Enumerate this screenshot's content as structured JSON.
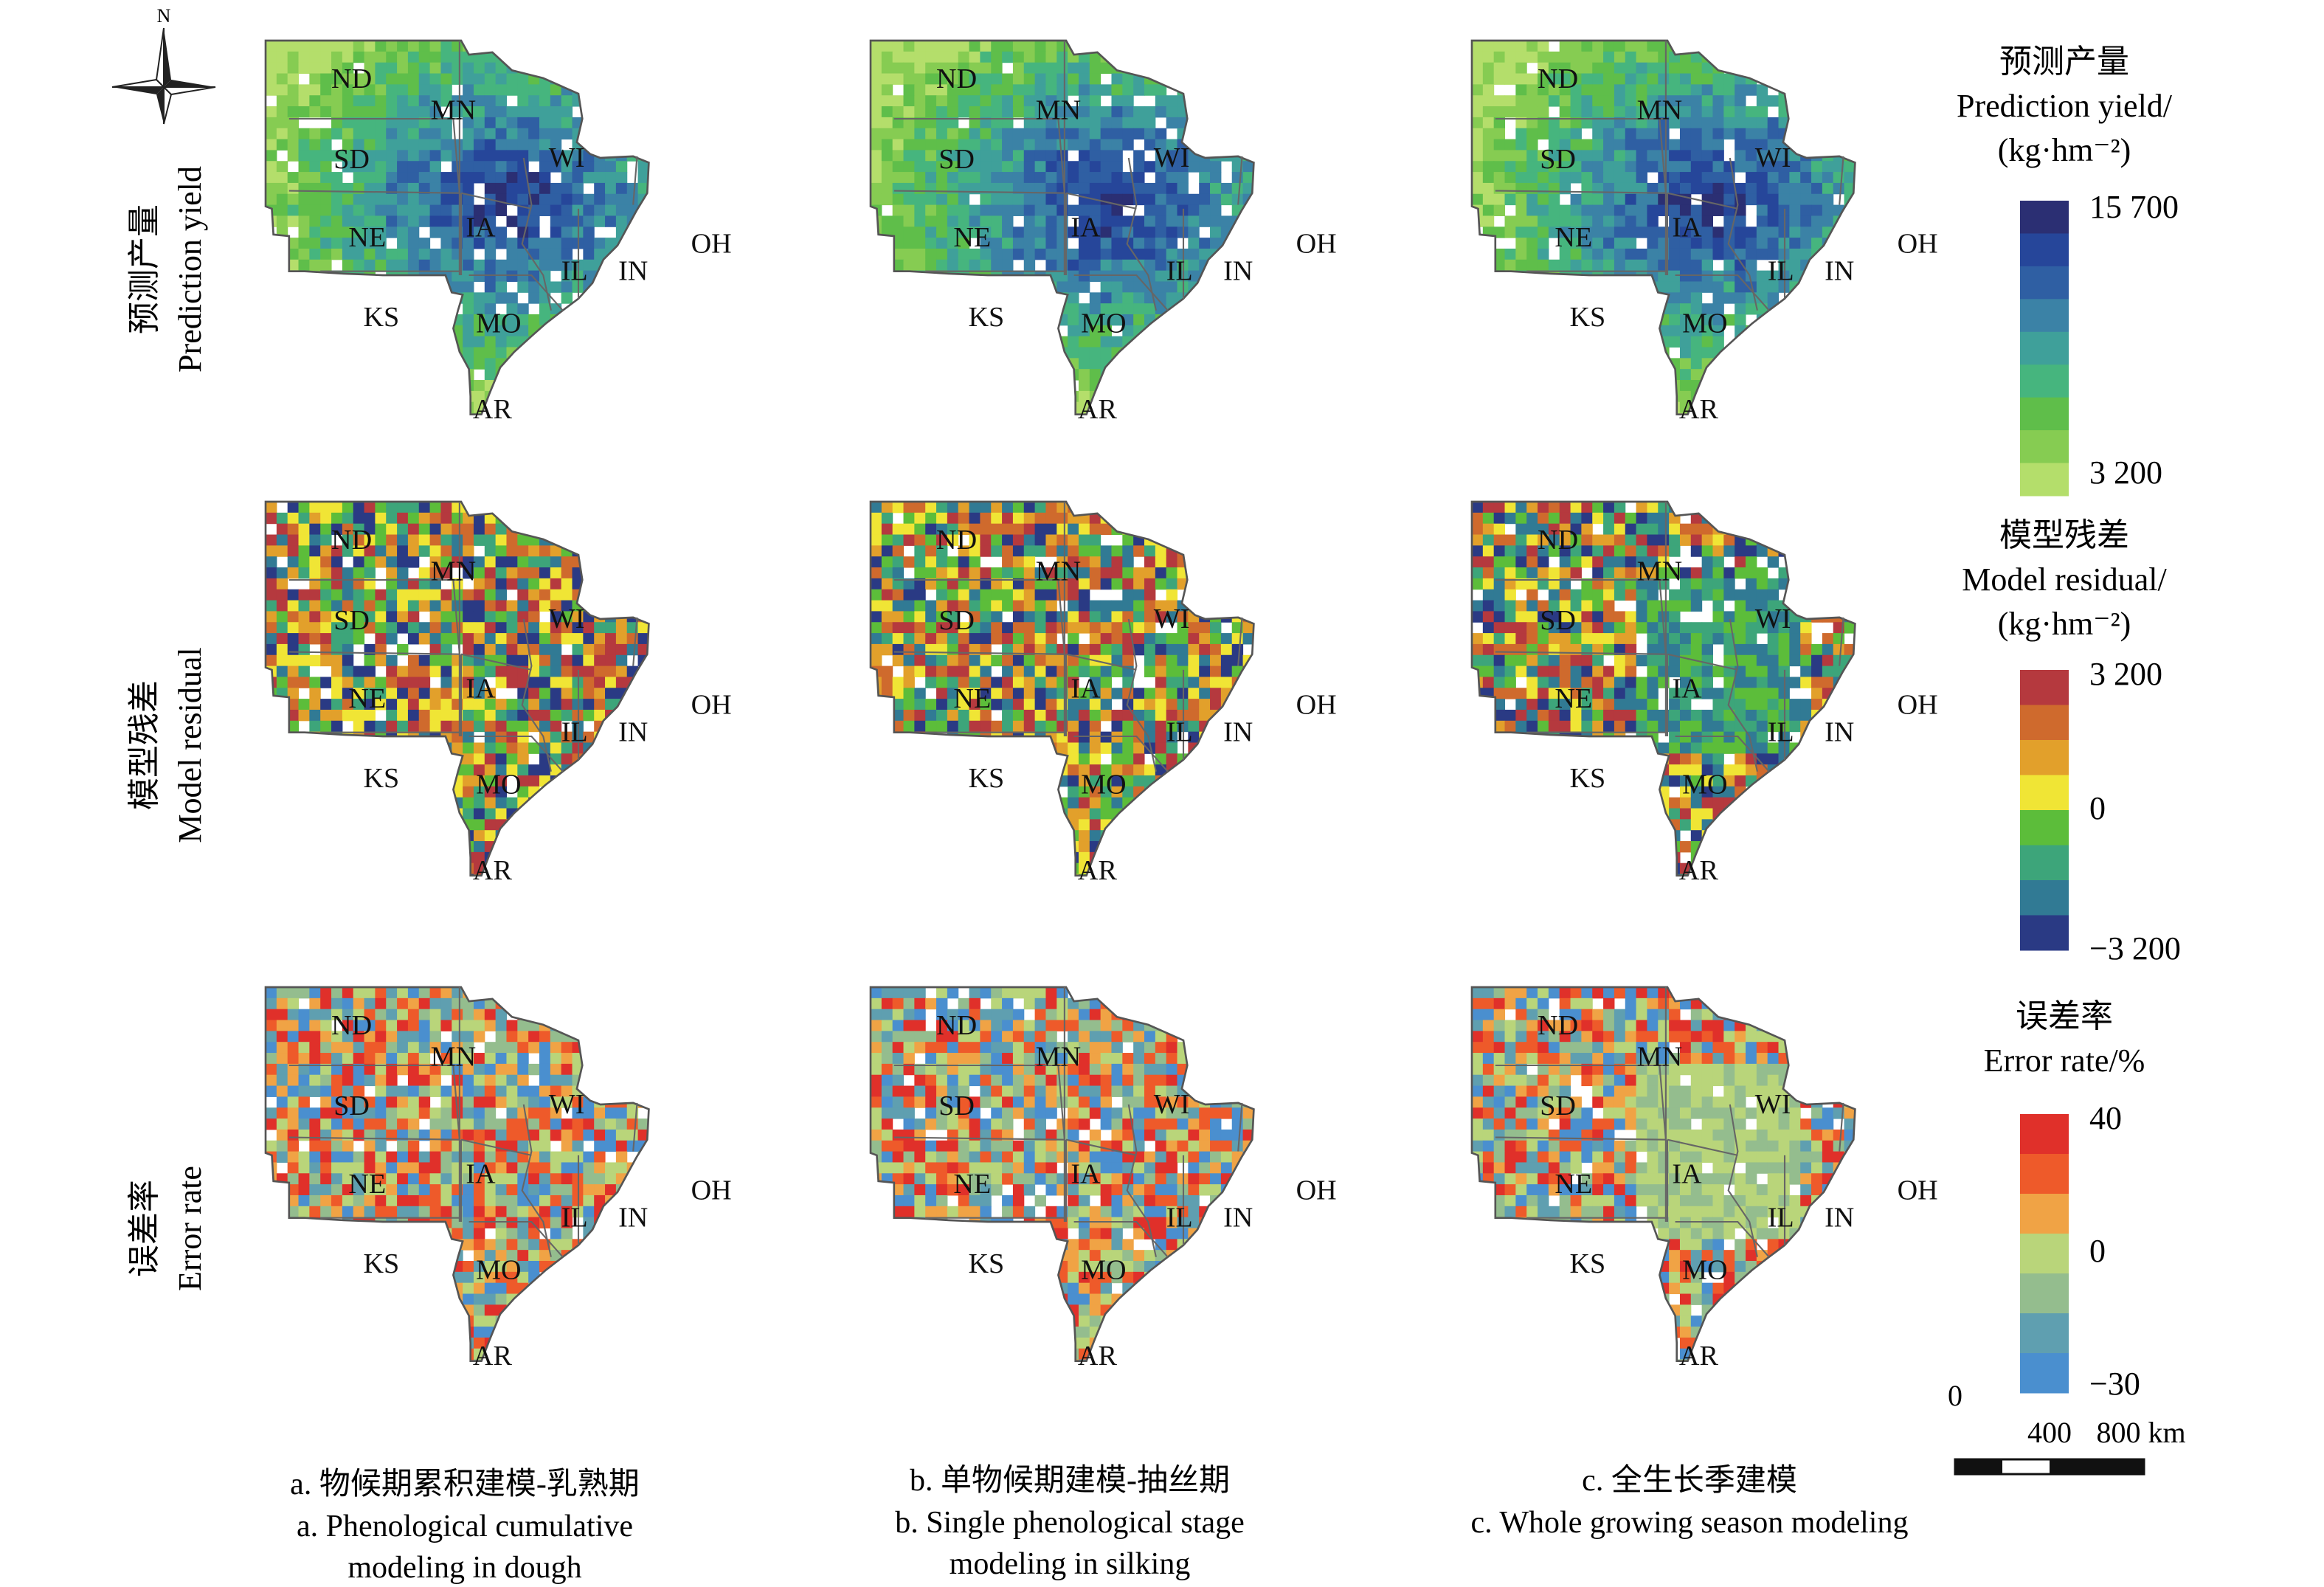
{
  "north_label": "N",
  "row_labels": [
    {
      "zh": "预测产量",
      "en": "Prediction yield"
    },
    {
      "zh": "模型残差",
      "en": "Model residual"
    },
    {
      "zh": "误差率",
      "en": "Error rate"
    }
  ],
  "column_captions": [
    {
      "zh": "a. 物候期累积建模-乳熟期",
      "en1": "a. Phenological cumulative",
      "en2": "modeling in dough"
    },
    {
      "zh": "b. 单物候期建模-抽丝期",
      "en1": "b. Single phenological stage",
      "en2": "modeling in silking"
    },
    {
      "zh": "c. 全生长季建模",
      "en1": "c. Whole growing season modeling",
      "en2": ""
    }
  ],
  "states": [
    "ND",
    "MN",
    "SD",
    "WI",
    "NE",
    "IA",
    "IL",
    "IN",
    "OH",
    "KS",
    "MO",
    "AR"
  ],
  "legends": [
    {
      "zh": "预测产量",
      "en": "Prediction yield/",
      "unit": "(kg·hm⁻²)",
      "max": "15 700",
      "mid": "",
      "min": "3 200",
      "colors": [
        "#2b2f73",
        "#26469a",
        "#2f5fa3",
        "#3b82a6",
        "#3fa09a",
        "#46b57e",
        "#5fbe4a",
        "#86cc52",
        "#b4de6b"
      ]
    },
    {
      "zh": "模型残差",
      "en": "Model residual/",
      "unit": "(kg·hm⁻²)",
      "max": "3 200",
      "mid": "0",
      "min": "−3 200",
      "colors": [
        "#b5393e",
        "#cf6a2d",
        "#e2a02b",
        "#f0e535",
        "#5cbd3a",
        "#3da57a",
        "#317a94",
        "#2a3a84"
      ]
    },
    {
      "zh": "误差率",
      "en": "Error rate/%",
      "unit": "",
      "max": "40",
      "mid": "0",
      "min": "−30",
      "colors": [
        "#e0302a",
        "#ee5a2a",
        "#f0a345",
        "#b9d57a",
        "#94bd8e",
        "#5f9fb0",
        "#4a8fcf"
      ]
    }
  ],
  "scale_bar": {
    "labels": [
      "0",
      "400",
      "800 km"
    ]
  }
}
